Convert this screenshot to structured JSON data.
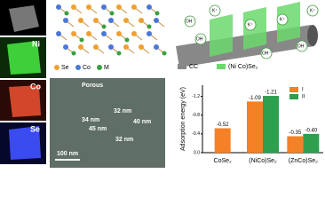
{
  "chart_data": {
    "type": "bar",
    "ylabel": "Adsorption energy (eV)",
    "categories": [
      "CoSe₂",
      "(NiCo)Se₂",
      "(ZnCo)Se₂"
    ],
    "series": [
      {
        "name": "I",
        "color": "#f58025",
        "values": [
          -0.52,
          -1.09,
          -0.35
        ],
        "value_labels": [
          "-0.52",
          "-1.09",
          "-0.35"
        ]
      },
      {
        "name": "II",
        "color": "#2e9e4f",
        "values": [
          null,
          -1.21,
          -0.4
        ],
        "value_labels": [
          null,
          "-1.21",
          "-0.40"
        ]
      }
    ],
    "ylim": [
      0,
      -1.4
    ],
    "yticks": [
      {
        "value": 0,
        "label": "0.0"
      },
      {
        "value": -0.4,
        "label": "-0.4"
      },
      {
        "value": -0.8,
        "label": "-0.8"
      },
      {
        "value": -1.2,
        "label": "-1.2"
      }
    ],
    "legend": "upper right"
  },
  "eds": {
    "labels": [
      "Ni",
      "Co",
      "Se"
    ]
  },
  "structure": {
    "legend": [
      "Se",
      "Co",
      "M"
    ]
  },
  "tem": {
    "title": "Porous",
    "sizes": [
      "34 nm",
      "32 nm",
      "40 nm",
      "45 nm",
      "32 nm"
    ],
    "scale": "100 nm"
  },
  "schematic": {
    "legend": [
      "CC",
      "(Ni Co)Se₂"
    ],
    "ions": [
      "OH⁻",
      "K⁺",
      "OH⁻",
      "K⁺",
      "OH⁻",
      "K⁺",
      "OH⁻",
      "K⁺"
    ]
  }
}
